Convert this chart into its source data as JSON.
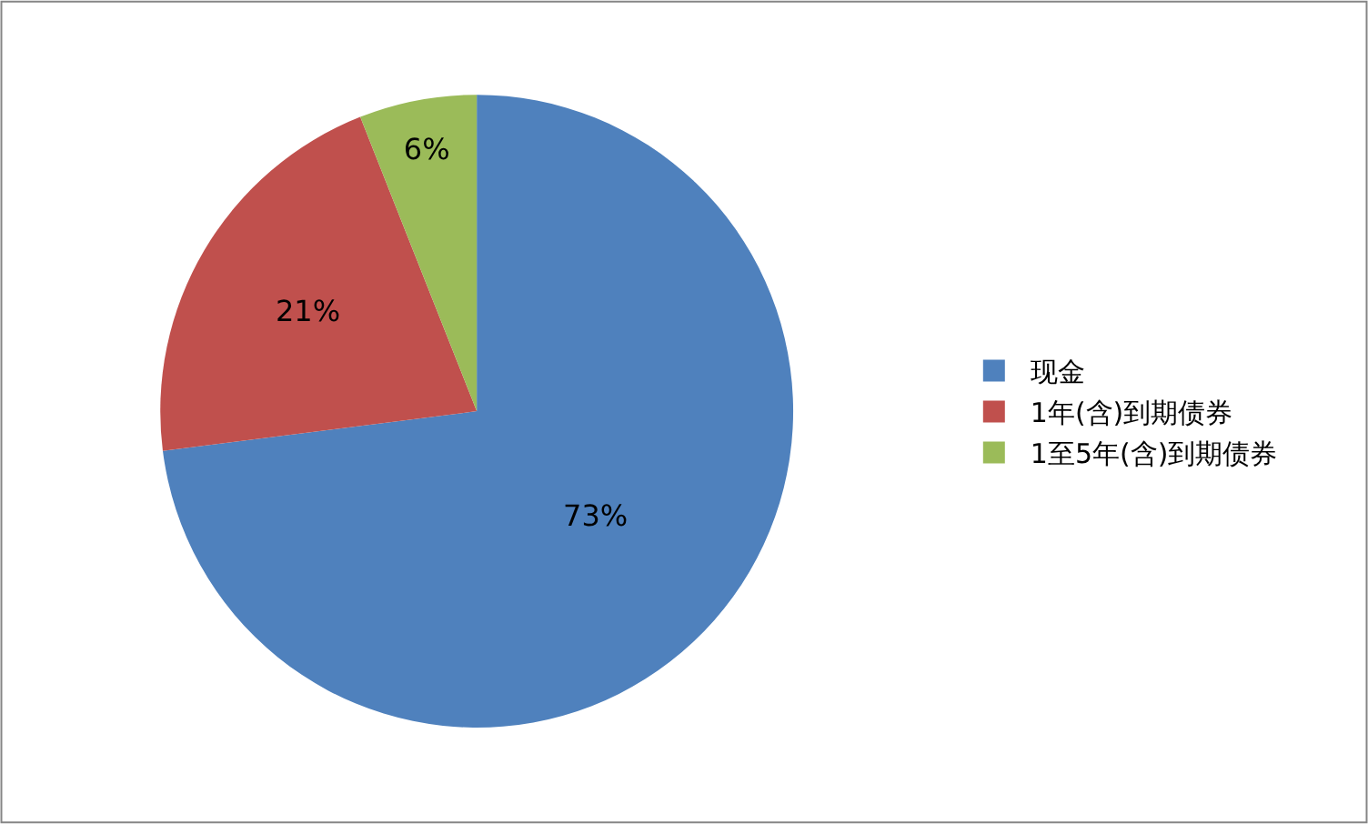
{
  "chart_data": {
    "type": "pie",
    "categories": [
      "现金",
      "1年(含)到期债券",
      "1至5年(含)到期债券"
    ],
    "values": [
      73,
      21,
      6
    ],
    "value_labels": [
      "73%",
      "21%",
      "6%"
    ],
    "colors": [
      "#4f81bd",
      "#c0504d",
      "#9bbb59"
    ],
    "legend": "right"
  }
}
